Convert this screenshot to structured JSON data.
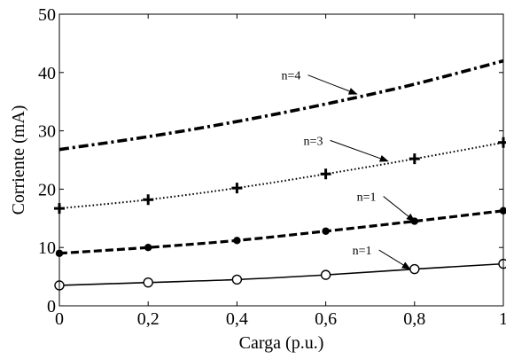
{
  "chart_data": {
    "type": "line",
    "title": "",
    "xlabel": "Carga (p.u.)",
    "ylabel": "Corriente (mA)",
    "xlim": [
      0,
      1
    ],
    "ylim": [
      0,
      50
    ],
    "x_ticks": [
      0,
      0.2,
      0.4,
      0.6,
      0.8,
      1
    ],
    "x_tick_labels": [
      "0",
      "0,2",
      "0,4",
      "0,6",
      "0,8",
      "1"
    ],
    "y_ticks": [
      0,
      10,
      20,
      30,
      40,
      50
    ],
    "y_tick_labels": [
      "0",
      "10",
      "20",
      "30",
      "40",
      "50"
    ],
    "grid": false,
    "series": [
      {
        "style": "solid-circle",
        "x": [
          0,
          0.2,
          0.4,
          0.6,
          0.8,
          1
        ],
        "y": [
          3.5,
          4.0,
          4.5,
          5.3,
          6.3,
          7.2
        ],
        "marker_x": [
          0,
          0.2,
          0.4,
          0.6,
          0.8,
          1
        ],
        "marker_y": [
          3.5,
          4.0,
          4.5,
          5.3,
          6.3,
          7.2
        ]
      },
      {
        "style": "dashed-dot-marker",
        "x": [
          0,
          0.2,
          0.4,
          0.6,
          0.8,
          1
        ],
        "y": [
          9.0,
          10.0,
          11.2,
          12.8,
          14.5,
          16.3
        ],
        "marker_x": [
          0,
          0.2,
          0.4,
          0.6,
          0.8,
          1
        ],
        "marker_y": [
          9.0,
          10.0,
          11.2,
          12.8,
          14.5,
          16.3
        ]
      },
      {
        "style": "dotted-plus",
        "x": [
          0,
          0.2,
          0.4,
          0.6,
          0.8,
          1
        ],
        "y": [
          16.7,
          18.2,
          20.2,
          22.6,
          25.2,
          28.0
        ],
        "marker_x": [
          0,
          0.2,
          0.4,
          0.6,
          0.8,
          1
        ],
        "marker_y": [
          16.7,
          18.2,
          20.2,
          22.6,
          25.2,
          28.0
        ]
      },
      {
        "style": "dashdot",
        "x": [
          0,
          0.2,
          0.4,
          0.6,
          0.8,
          1
        ],
        "y": [
          26.8,
          29.0,
          31.6,
          34.6,
          38.0,
          42.0
        ]
      }
    ],
    "annotations": [
      {
        "text": "n=4",
        "label_x": 0.5,
        "label_y": 38.8,
        "arrow_x": 0.67,
        "arrow_y": 36.3
      },
      {
        "text": "n=3",
        "label_x": 0.55,
        "label_y": 27.6,
        "arrow_x": 0.74,
        "arrow_y": 24.8
      },
      {
        "text": "n=1",
        "label_x": 0.67,
        "label_y": 18.0,
        "arrow_x": 0.8,
        "arrow_y": 14.5
      },
      {
        "text": "n=1",
        "label_x": 0.66,
        "label_y": 8.8,
        "arrow_x": 0.79,
        "arrow_y": 6.3
      }
    ]
  }
}
